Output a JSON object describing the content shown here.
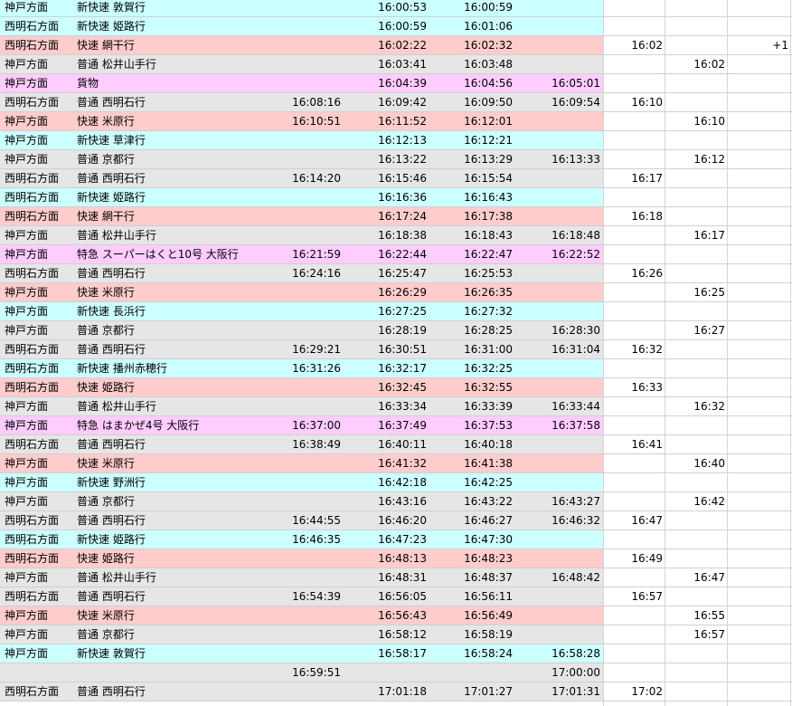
{
  "colors": {
    "cyan": "#ccffff",
    "pink": "#ffcccc",
    "gray": "#e6e6e6",
    "magenta": "#ffccff",
    "white": "#ffffff",
    "grid": "#d0d0d0"
  },
  "rows": [
    {
      "color": "cyan",
      "dir": "神戸方面",
      "train": "新快速 敦賀行",
      "t1": "",
      "t2": "16:00:53",
      "t3": "16:00:59",
      "t4": "",
      "w": "",
      "k": "",
      "n": ""
    },
    {
      "color": "cyan",
      "dir": "西明石方面",
      "train": "新快速 姫路行",
      "t1": "",
      "t2": "16:00:59",
      "t3": "16:01:06",
      "t4": "",
      "w": "",
      "k": "",
      "n": ""
    },
    {
      "color": "pink",
      "dir": "西明石方面",
      "train": "快速 網干行",
      "t1": "",
      "t2": "16:02:22",
      "t3": "16:02:32",
      "t4": "",
      "w": "16:02",
      "k": "",
      "n": "+1"
    },
    {
      "color": "gray",
      "dir": "神戸方面",
      "train": "普通 松井山手行",
      "t1": "",
      "t2": "16:03:41",
      "t3": "16:03:48",
      "t4": "",
      "w": "",
      "k": "16:02",
      "n": ""
    },
    {
      "color": "magenta",
      "dir": "神戸方面",
      "train": "貨物",
      "t1": "",
      "t2": "16:04:39",
      "t3": "16:04:56",
      "t4": "16:05:01",
      "w": "",
      "k": "",
      "n": ""
    },
    {
      "color": "gray",
      "dir": "西明石方面",
      "train": "普通 西明石行",
      "t1": "16:08:16",
      "t2": "16:09:42",
      "t3": "16:09:50",
      "t4": "16:09:54",
      "w": "16:10",
      "k": "",
      "n": ""
    },
    {
      "color": "pink",
      "dir": "神戸方面",
      "train": "快速 米原行",
      "t1": "16:10:51",
      "t2": "16:11:52",
      "t3": "16:12:01",
      "t4": "",
      "w": "",
      "k": "16:10",
      "n": ""
    },
    {
      "color": "cyan",
      "dir": "神戸方面",
      "train": "新快速 草津行",
      "t1": "",
      "t2": "16:12:13",
      "t3": "16:12:21",
      "t4": "",
      "w": "",
      "k": "",
      "n": ""
    },
    {
      "color": "gray",
      "dir": "神戸方面",
      "train": "普通 京都行",
      "t1": "",
      "t2": "16:13:22",
      "t3": "16:13:29",
      "t4": "16:13:33",
      "w": "",
      "k": "16:12",
      "n": ""
    },
    {
      "color": "gray",
      "dir": "西明石方面",
      "train": "普通 西明石行",
      "t1": "16:14:20",
      "t2": "16:15:46",
      "t3": "16:15:54",
      "t4": "",
      "w": "16:17",
      "k": "",
      "n": ""
    },
    {
      "color": "cyan",
      "dir": "西明石方面",
      "train": "新快速 姫路行",
      "t1": "",
      "t2": "16:16:36",
      "t3": "16:16:43",
      "t4": "",
      "w": "",
      "k": "",
      "n": ""
    },
    {
      "color": "pink",
      "dir": "西明石方面",
      "train": "快速 網干行",
      "t1": "",
      "t2": "16:17:24",
      "t3": "16:17:38",
      "t4": "",
      "w": "16:18",
      "k": "",
      "n": ""
    },
    {
      "color": "gray",
      "dir": "神戸方面",
      "train": "普通 松井山手行",
      "t1": "",
      "t2": "16:18:38",
      "t3": "16:18:43",
      "t4": "16:18:48",
      "w": "",
      "k": "16:17",
      "n": ""
    },
    {
      "color": "magenta",
      "dir": "神戸方面",
      "train": "特急 スーパーはくと10号 大阪行",
      "t1": "16:21:59",
      "t2": "16:22:44",
      "t3": "16:22:47",
      "t4": "16:22:52",
      "w": "",
      "k": "",
      "n": ""
    },
    {
      "color": "gray",
      "dir": "西明石方面",
      "train": "普通 西明石行",
      "t1": "16:24:16",
      "t2": "16:25:47",
      "t3": "16:25:53",
      "t4": "",
      "w": "16:26",
      "k": "",
      "n": ""
    },
    {
      "color": "pink",
      "dir": "神戸方面",
      "train": "快速 米原行",
      "t1": "",
      "t2": "16:26:29",
      "t3": "16:26:35",
      "t4": "",
      "w": "",
      "k": "16:25",
      "n": ""
    },
    {
      "color": "cyan",
      "dir": "神戸方面",
      "train": "新快速 長浜行",
      "t1": "",
      "t2": "16:27:25",
      "t3": "16:27:32",
      "t4": "",
      "w": "",
      "k": "",
      "n": ""
    },
    {
      "color": "gray",
      "dir": "神戸方面",
      "train": "普通 京都行",
      "t1": "",
      "t2": "16:28:19",
      "t3": "16:28:25",
      "t4": "16:28:30",
      "w": "",
      "k": "16:27",
      "n": ""
    },
    {
      "color": "gray",
      "dir": "西明石方面",
      "train": "普通 西明石行",
      "t1": "16:29:21",
      "t2": "16:30:51",
      "t3": "16:31:00",
      "t4": "16:31:04",
      "w": "16:32",
      "k": "",
      "n": ""
    },
    {
      "color": "cyan",
      "dir": "西明石方面",
      "train": "新快速 播州赤穂行",
      "t1": "16:31:26",
      "t2": "16:32:17",
      "t3": "16:32:25",
      "t4": "",
      "w": "",
      "k": "",
      "n": ""
    },
    {
      "color": "pink",
      "dir": "西明石方面",
      "train": "快速 姫路行",
      "t1": "",
      "t2": "16:32:45",
      "t3": "16:32:55",
      "t4": "",
      "w": "16:33",
      "k": "",
      "n": ""
    },
    {
      "color": "gray",
      "dir": "神戸方面",
      "train": "普通 松井山手行",
      "t1": "",
      "t2": "16:33:34",
      "t3": "16:33:39",
      "t4": "16:33:44",
      "w": "",
      "k": "16:32",
      "n": ""
    },
    {
      "color": "magenta",
      "dir": "神戸方面",
      "train": "特急 はまかぜ4号 大阪行",
      "t1": "16:37:00",
      "t2": "16:37:49",
      "t3": "16:37:53",
      "t4": "16:37:58",
      "w": "",
      "k": "",
      "n": ""
    },
    {
      "color": "gray",
      "dir": "西明石方面",
      "train": "普通 西明石行",
      "t1": "16:38:49",
      "t2": "16:40:11",
      "t3": "16:40:18",
      "t4": "",
      "w": "16:41",
      "k": "",
      "n": ""
    },
    {
      "color": "pink",
      "dir": "神戸方面",
      "train": "快速 米原行",
      "t1": "",
      "t2": "16:41:32",
      "t3": "16:41:38",
      "t4": "",
      "w": "",
      "k": "16:40",
      "n": ""
    },
    {
      "color": "cyan",
      "dir": "神戸方面",
      "train": "新快速 野洲行",
      "t1": "",
      "t2": "16:42:18",
      "t3": "16:42:25",
      "t4": "",
      "w": "",
      "k": "",
      "n": ""
    },
    {
      "color": "gray",
      "dir": "神戸方面",
      "train": "普通 京都行",
      "t1": "",
      "t2": "16:43:16",
      "t3": "16:43:22",
      "t4": "16:43:27",
      "w": "",
      "k": "16:42",
      "n": ""
    },
    {
      "color": "gray",
      "dir": "西明石方面",
      "train": "普通 西明石行",
      "t1": "16:44:55",
      "t2": "16:46:20",
      "t3": "16:46:27",
      "t4": "16:46:32",
      "w": "16:47",
      "k": "",
      "n": ""
    },
    {
      "color": "cyan",
      "dir": "西明石方面",
      "train": "新快速 姫路行",
      "t1": "16:46:35",
      "t2": "16:47:23",
      "t3": "16:47:30",
      "t4": "",
      "w": "",
      "k": "",
      "n": ""
    },
    {
      "color": "pink",
      "dir": "西明石方面",
      "train": "快速 姫路行",
      "t1": "",
      "t2": "16:48:13",
      "t3": "16:48:23",
      "t4": "",
      "w": "16:49",
      "k": "",
      "n": ""
    },
    {
      "color": "gray",
      "dir": "神戸方面",
      "train": "普通 松井山手行",
      "t1": "",
      "t2": "16:48:31",
      "t3": "16:48:37",
      "t4": "16:48:42",
      "w": "",
      "k": "16:47",
      "n": ""
    },
    {
      "color": "gray",
      "dir": "西明石方面",
      "train": "普通 西明石行",
      "t1": "16:54:39",
      "t2": "16:56:05",
      "t3": "16:56:11",
      "t4": "",
      "w": "16:57",
      "k": "",
      "n": ""
    },
    {
      "color": "pink",
      "dir": "神戸方面",
      "train": "快速 米原行",
      "t1": "",
      "t2": "16:56:43",
      "t3": "16:56:49",
      "t4": "",
      "w": "",
      "k": "16:55",
      "n": ""
    },
    {
      "color": "gray",
      "dir": "神戸方面",
      "train": "普通 京都行",
      "t1": "",
      "t2": "16:58:12",
      "t3": "16:58:19",
      "t4": "",
      "w": "",
      "k": "16:57",
      "n": ""
    },
    {
      "color": "cyan",
      "dir": "神戸方面",
      "train": "新快速 敦賀行",
      "t1": "",
      "t2": "16:58:17",
      "t3": "16:58:24",
      "t4": "16:58:28",
      "w": "",
      "k": "",
      "n": ""
    },
    {
      "color": "gray",
      "dir": "",
      "train": "",
      "t1": "16:59:51",
      "t2": "",
      "t3": "",
      "t4": "17:00:00",
      "w": "",
      "k": "",
      "n": ""
    },
    {
      "color": "gray",
      "dir": "西明石方面",
      "train": "普通 西明石行",
      "t1": "",
      "t2": "17:01:18",
      "t3": "17:01:27",
      "t4": "17:01:31",
      "w": "17:02",
      "k": "",
      "n": ""
    }
  ]
}
